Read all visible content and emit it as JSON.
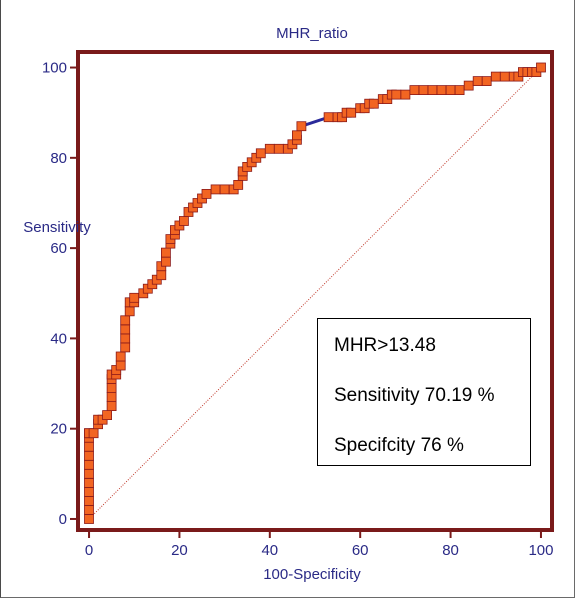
{
  "chart_data": {
    "type": "line",
    "title": "MHR_ratio",
    "xlabel": "100-Specificity",
    "ylabel": "Sensitivity",
    "xlim": [
      -2,
      102
    ],
    "ylim": [
      -2,
      103
    ],
    "xticks": [
      0,
      20,
      40,
      60,
      80,
      100
    ],
    "yticks": [
      0,
      20,
      40,
      60,
      80,
      100
    ],
    "grid": false,
    "colors": {
      "roc_line": "#2a2a9a",
      "marker_fill": "#f26522",
      "marker_stroke": "#8b1a1a",
      "diagonal": "#c0392b",
      "frame": "#7a1a1a",
      "text": "#2a2a86"
    },
    "series": [
      {
        "x": [
          0,
          0,
          0,
          0,
          0,
          0,
          0,
          0,
          0,
          0,
          0,
          0,
          1,
          2,
          2,
          3,
          4,
          5,
          5,
          5,
          5,
          5,
          6,
          6,
          7,
          7,
          8,
          8,
          8,
          8,
          9,
          9,
          10,
          10,
          12,
          13,
          14,
          15,
          16,
          16,
          17,
          17,
          18,
          18,
          19,
          19,
          20,
          21,
          22,
          23,
          24,
          25,
          26,
          28,
          30,
          32,
          33,
          34,
          34,
          35,
          36,
          37,
          38,
          40,
          42,
          44,
          45,
          46,
          46,
          47,
          53,
          55,
          56,
          57,
          58,
          60,
          61,
          62,
          63,
          65,
          66,
          67,
          68,
          70,
          72,
          74,
          76,
          78,
          80,
          82,
          84,
          86,
          88,
          90,
          92,
          94,
          95,
          96,
          97,
          98,
          99,
          100
        ],
        "y": [
          0,
          2,
          4,
          6,
          8,
          10,
          12,
          14,
          16,
          18,
          19,
          19,
          19,
          21,
          22,
          22,
          23,
          25,
          27,
          29,
          31,
          32,
          32,
          33,
          34,
          36,
          38,
          40,
          42,
          44,
          46,
          48,
          48,
          49,
          50,
          51,
          52,
          53,
          54,
          56,
          57,
          59,
          61,
          62,
          63,
          64,
          65,
          66,
          68,
          69,
          70,
          71,
          72,
          73,
          73,
          73,
          74,
          76,
          77,
          78,
          79,
          80,
          81,
          82,
          82,
          82,
          83,
          84,
          85,
          87,
          89,
          89,
          89,
          90,
          90,
          91,
          91,
          92,
          92,
          93,
          93,
          94,
          94,
          94,
          95,
          95,
          95,
          95,
          95,
          95,
          96,
          97,
          97,
          98,
          98,
          98,
          98,
          99,
          99,
          99,
          99,
          100
        ]
      },
      {
        "x": [
          0,
          100
        ],
        "y": [
          0,
          100
        ]
      }
    ]
  },
  "annotation": {
    "cutoff": "MHR>13.48",
    "sensitivity": "Sensitivity 70.19 %",
    "specificity": "Specifcity 76 %"
  }
}
